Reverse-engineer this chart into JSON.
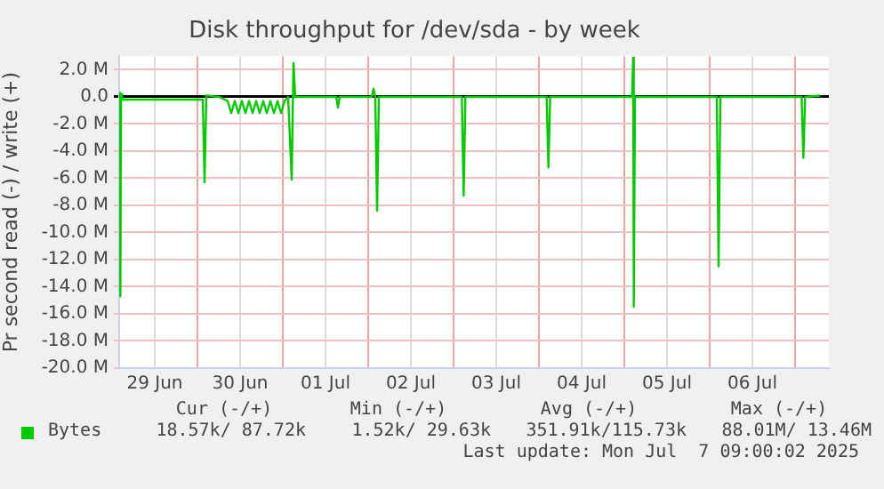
{
  "chart_data": {
    "type": "line",
    "title": "Disk throughput for /dev/sda - by week",
    "ylabel": "Pr second read (-) / write (+)",
    "x": [
      "2025-06-29T02:00",
      "2025-06-29T02:20",
      "2025-06-29T02:30",
      "2025-06-29T02:50",
      "2025-06-29T04:00",
      "2025-06-29T12:00",
      "2025-06-29T20:00",
      "2025-06-30T01:30",
      "2025-06-30T02:00",
      "2025-06-30T02:30",
      "2025-06-30T06:00",
      "2025-06-30T08:30",
      "2025-06-30T09:30",
      "2025-06-30T10:30",
      "2025-06-30T11:30",
      "2025-06-30T12:30",
      "2025-06-30T13:30",
      "2025-06-30T14:30",
      "2025-06-30T15:30",
      "2025-06-30T16:30",
      "2025-06-30T17:30",
      "2025-06-30T18:30",
      "2025-06-30T19:30",
      "2025-06-30T20:30",
      "2025-06-30T21:30",
      "2025-06-30T22:30",
      "2025-06-30T23:30",
      "2025-07-01T00:30",
      "2025-07-01T01:30",
      "2025-07-01T02:30",
      "2025-07-01T03:00",
      "2025-07-01T03:30",
      "2025-07-01T15:00",
      "2025-07-01T15:30",
      "2025-07-01T16:00",
      "2025-07-02T01:00",
      "2025-07-02T01:30",
      "2025-07-02T02:00",
      "2025-07-02T02:30",
      "2025-07-02T03:00",
      "2025-07-03T02:20",
      "2025-07-03T02:50",
      "2025-07-03T03:20",
      "2025-07-04T02:10",
      "2025-07-04T02:40",
      "2025-07-04T03:10",
      "2025-07-05T02:10",
      "2025-07-05T02:30",
      "2025-07-05T02:40",
      "2025-07-05T03:00",
      "2025-07-06T02:00",
      "2025-07-06T02:30",
      "2025-07-06T03:00",
      "2025-07-07T01:50",
      "2025-07-07T02:20",
      "2025-07-07T02:50",
      "2025-07-07T07:00"
    ],
    "series": [
      {
        "name": "Bytes",
        "color": "#00cc00",
        "values": [
          0.3,
          -14.7,
          0.2,
          -0.2,
          -0.2,
          -0.2,
          -0.2,
          -0.2,
          -6.3,
          0.1,
          0,
          -0.3,
          -1.2,
          -0.3,
          -1.2,
          -0.3,
          -1.2,
          -0.3,
          -1.2,
          -0.3,
          -1.2,
          -0.3,
          -1.2,
          -0.3,
          -1.2,
          -0.3,
          -1.2,
          -0.3,
          0,
          -6.1,
          2.5,
          0,
          0,
          -0.8,
          0,
          0,
          0.6,
          0,
          -8.4,
          0,
          0,
          -7.3,
          0,
          0,
          -5.2,
          0,
          0,
          2.9,
          -15.5,
          0,
          0,
          -12.5,
          0,
          0,
          -4.5,
          0,
          0.1
        ]
      }
    ],
    "xlim": [
      "2025-06-29T02:00",
      "2025-07-07T09:30"
    ],
    "xticks": [
      {
        "value": "2025-06-29T12:00",
        "label": "29 Jun"
      },
      {
        "value": "2025-06-30T00:00",
        "label": null
      },
      {
        "value": "2025-06-30T12:00",
        "label": "30 Jun"
      },
      {
        "value": "2025-07-01T00:00",
        "label": null
      },
      {
        "value": "2025-07-01T12:00",
        "label": "01 Jul"
      },
      {
        "value": "2025-07-02T00:00",
        "label": null
      },
      {
        "value": "2025-07-02T12:00",
        "label": "02 Jul"
      },
      {
        "value": "2025-07-03T00:00",
        "label": null
      },
      {
        "value": "2025-07-03T12:00",
        "label": "03 Jul"
      },
      {
        "value": "2025-07-04T00:00",
        "label": null
      },
      {
        "value": "2025-07-04T12:00",
        "label": "04 Jul"
      },
      {
        "value": "2025-07-05T00:00",
        "label": null
      },
      {
        "value": "2025-07-05T12:00",
        "label": "05 Jul"
      },
      {
        "value": "2025-07-06T00:00",
        "label": null
      },
      {
        "value": "2025-07-06T12:00",
        "label": "06 Jul"
      },
      {
        "value": "2025-07-07T00:00",
        "label": null
      }
    ],
    "ylim": [
      -20,
      3
    ],
    "yticks": [
      {
        "value": 2,
        "label": "2.0 M"
      },
      {
        "value": 0,
        "label": "0.0"
      },
      {
        "value": -2,
        "label": "-2.0 M"
      },
      {
        "value": -4,
        "label": "-4.0 M"
      },
      {
        "value": -6,
        "label": "-6.0 M"
      },
      {
        "value": -8,
        "label": "-8.0 M"
      },
      {
        "value": -10,
        "label": "-10.0 M"
      },
      {
        "value": -12,
        "label": "-12.0 M"
      },
      {
        "value": -14,
        "label": "-14.0 M"
      },
      {
        "value": -16,
        "label": "-16.0 M"
      },
      {
        "value": -18,
        "label": "-18.0 M"
      },
      {
        "value": -20,
        "label": "-20.0 M"
      }
    ],
    "grid": true,
    "legend": "bottom left",
    "marker": "none",
    "line_style": "solid",
    "annotations": [
      "Cur (-/+)",
      "Min (-/+)",
      "Avg (-/+)",
      "Max (-/+)",
      "18.57k/ 87.72k",
      "1.52k/ 29.63k",
      "351.91k/115.73k",
      "88.01M/ 13.46M",
      "Last update: Mon Jul  7 09:00:02 2025"
    ]
  }
}
